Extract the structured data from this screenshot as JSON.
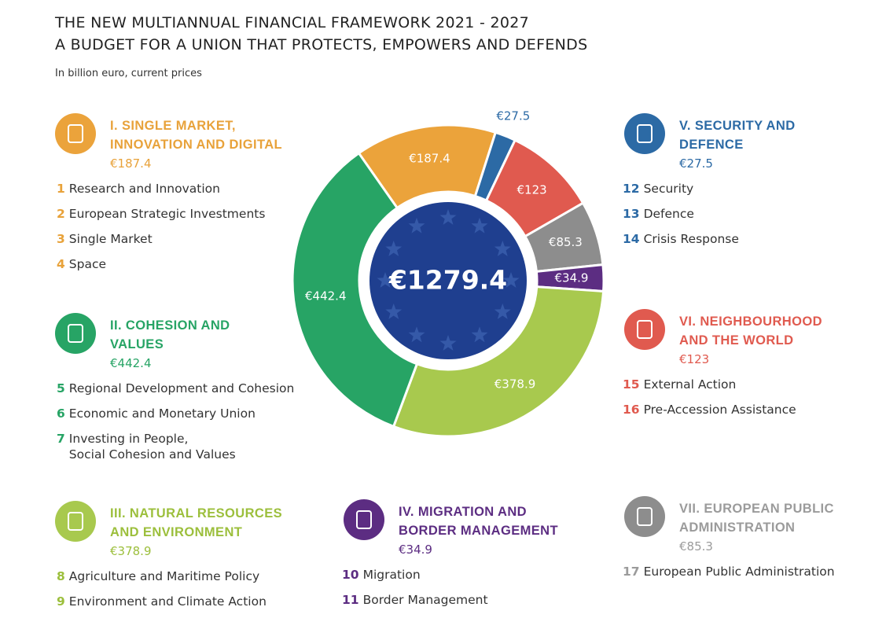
{
  "chart_data": {
    "type": "donut",
    "title": "THE NEW MULTIANNUAL FINANCIAL FRAMEWORK 2021 - 2027",
    "subtitle": "A BUDGET FOR A UNION THAT PROTECTS, EMPOWERS AND DEFENDS",
    "note": "In billion euro, current prices",
    "total": 1279.4,
    "total_label": "€1279.4",
    "categories": [
      "I. SINGLE MARKET, INNOVATION AND DIGITAL",
      "V. SECURITY AND DEFENCE",
      "VI. NEIGHBOURHOOD AND THE WORLD",
      "VII. EUROPEAN PUBLIC ADMINISTRATION",
      "IV. MIGRATION AND BORDER MANAGEMENT",
      "III. NATURAL RESOURCES AND ENVIRONMENT",
      "II. COHESION AND VALUES"
    ],
    "values": [
      187.4,
      27.5,
      123,
      85.3,
      34.9,
      378.9,
      442.4
    ],
    "value_labels": [
      "€187.4",
      "€27.5",
      "€123",
      "€85.3",
      "€34.9",
      "€378.9",
      "€442.4"
    ],
    "colors": [
      "#eba33b",
      "#2c6aa5",
      "#e05a4f",
      "#8d8d8d",
      "#5c2d82",
      "#a8c94e",
      "#27a465"
    ],
    "sections": [
      {
        "items": [
          {
            "number": 1,
            "label": "Research and Innovation"
          },
          {
            "number": 2,
            "label": "European Strategic Investments"
          },
          {
            "number": 3,
            "label": "Single Market"
          },
          {
            "number": 4,
            "label": "Space"
          }
        ]
      },
      {
        "items": [
          {
            "number": 12,
            "label": "Security"
          },
          {
            "number": 13,
            "label": "Defence"
          },
          {
            "number": 14,
            "label": "Crisis Response"
          }
        ]
      },
      {
        "items": [
          {
            "number": 15,
            "label": "External Action"
          },
          {
            "number": 16,
            "label": "Pre-Accession Assistance"
          }
        ]
      },
      {
        "items": [
          {
            "number": 17,
            "label": "European Public Administration"
          }
        ]
      },
      {
        "items": [
          {
            "number": 10,
            "label": "Migration"
          },
          {
            "number": 11,
            "label": "Border Management"
          }
        ]
      },
      {
        "items": [
          {
            "number": 8,
            "label": "Agriculture and Maritime Policy"
          },
          {
            "number": 9,
            "label": "Environment and Climate Action"
          }
        ]
      },
      {
        "items": [
          {
            "number": 5,
            "label": "Regional Development and Cohesion"
          },
          {
            "number": 6,
            "label": "Economic and Monetary Union"
          },
          {
            "number": 7,
            "label": [
              "Investing in People,",
              "Social Cohesion and Values"
            ]
          }
        ]
      }
    ]
  }
}
